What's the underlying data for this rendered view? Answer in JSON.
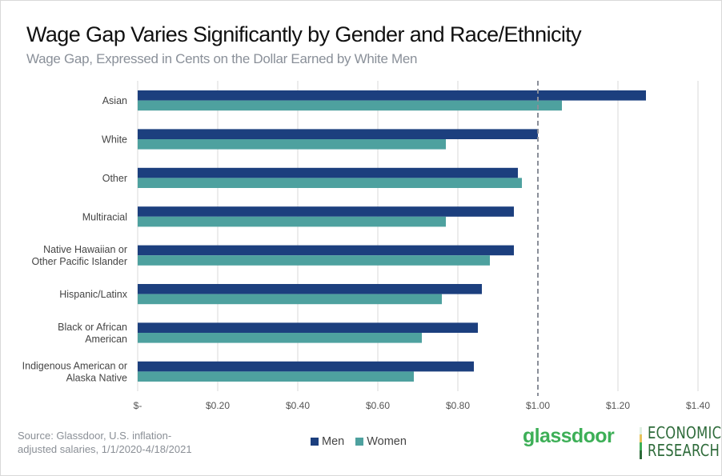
{
  "header": {
    "title": "Wage Gap Varies Significantly by Gender and Race/Ethnicity",
    "subtitle": "Wage Gap, Expressed in Cents on the Dollar Earned by White Men"
  },
  "footer": {
    "source_line1": "Source: Glassdoor, U.S. inflation-",
    "source_line2": "adjusted salaries, 1/1/2020-4/18/2021",
    "logo_word": "glassdoor",
    "logo_line1": "ECONOMIC",
    "logo_line2": "RESEARCH"
  },
  "colors": {
    "men": "#1c3f7e",
    "women": "#4ea19f",
    "reference_line": "#8a8f99",
    "grid": "#d9d9d9",
    "logo_green": "#3daf57",
    "logo_dark": "#2e6b3a"
  },
  "chart_data": {
    "type": "bar",
    "orientation": "horizontal",
    "title": "Wage Gap Varies Significantly by Gender and Race/Ethnicity",
    "subtitle": "Wage Gap, Expressed in Cents on the Dollar Earned by White Men",
    "xlabel": "",
    "ylabel": "",
    "xlim": [
      0,
      1.4
    ],
    "x_ticks": [
      0,
      0.2,
      0.4,
      0.6,
      0.8,
      1.0,
      1.2,
      1.4
    ],
    "x_tick_labels": [
      "$-",
      "$0.20",
      "$0.40",
      "$0.60",
      "$0.80",
      "$1.00",
      "$1.20",
      "$1.40"
    ],
    "grid": "vertical",
    "reference_line": {
      "x": 1.0,
      "style": "dashed"
    },
    "legend": {
      "position": "bottom",
      "entries": [
        "Men",
        "Women"
      ]
    },
    "categories": [
      [
        "Asian"
      ],
      [
        "White"
      ],
      [
        "Other"
      ],
      [
        "Multiracial"
      ],
      [
        "Native Hawaiian or",
        "Other Pacific Islander"
      ],
      [
        "Hispanic/Latinx"
      ],
      [
        "Black or African",
        "American"
      ],
      [
        "Indigenous American or",
        "Alaska Native"
      ]
    ],
    "series": [
      {
        "name": "Men",
        "values": [
          1.27,
          1.0,
          0.95,
          0.94,
          0.94,
          0.86,
          0.85,
          0.84
        ]
      },
      {
        "name": "Women",
        "values": [
          1.06,
          0.77,
          0.96,
          0.77,
          0.88,
          0.76,
          0.71,
          0.69
        ]
      }
    ]
  }
}
